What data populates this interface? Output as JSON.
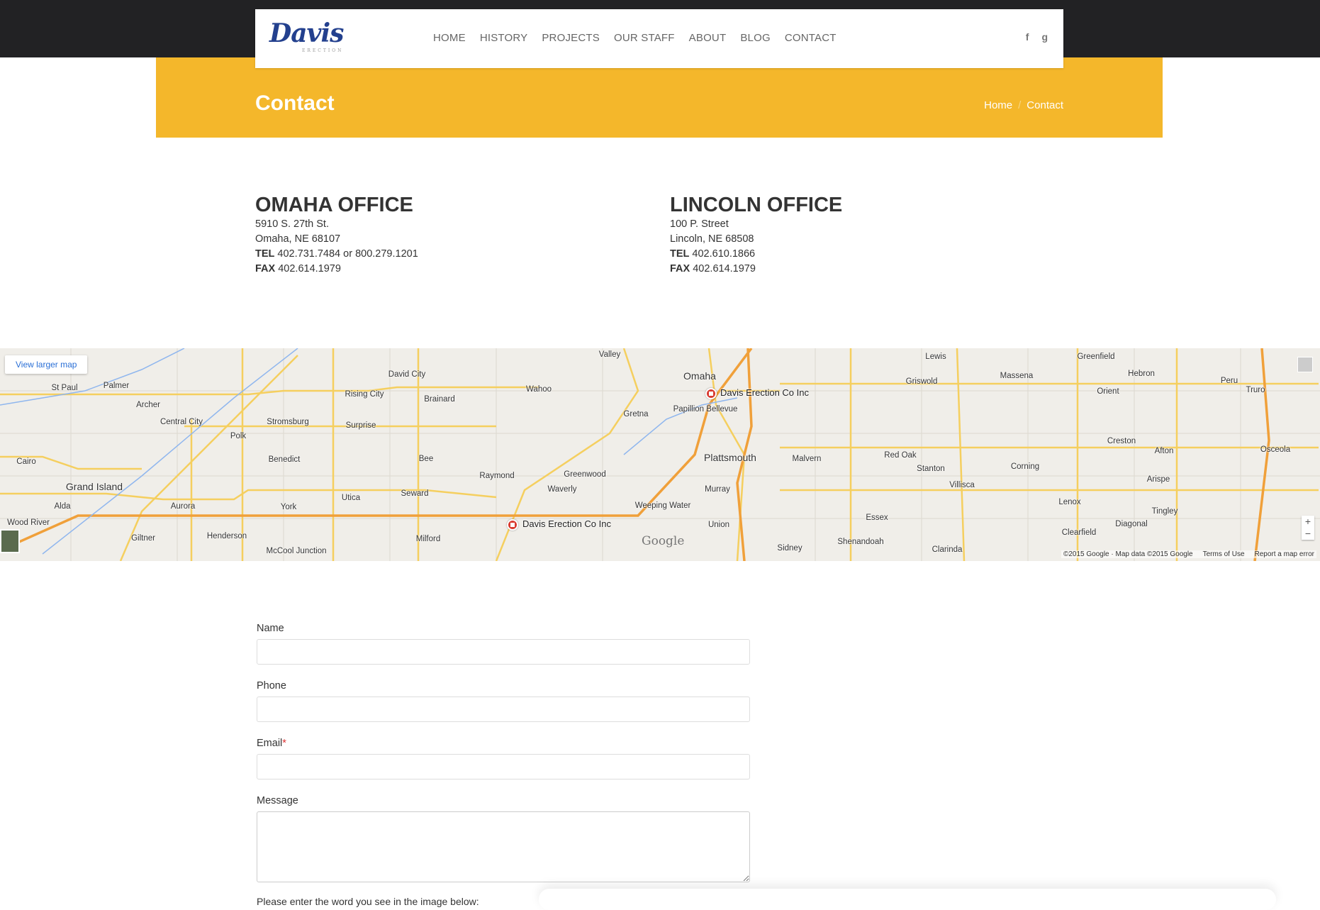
{
  "header": {
    "logo_text": "Davis",
    "logo_sub": "ERECTION",
    "nav": [
      "HOME",
      "HISTORY",
      "PROJECTS",
      "OUR STAFF",
      "ABOUT",
      "BLOG",
      "CONTACT"
    ],
    "social": {
      "facebook": "f",
      "google": "g"
    }
  },
  "banner": {
    "title": "Contact",
    "breadcrumb": [
      "Home",
      "Contact"
    ],
    "separator": "/",
    "color": "#f4b72b"
  },
  "offices": [
    {
      "title": "OMAHA OFFICE",
      "address1": "5910 S. 27th St.",
      "address2": "Omaha, NE 68107",
      "tel_label": "TEL",
      "tel": "402.731.7484 or 800.279.1201",
      "fax_label": "FAX",
      "fax": "402.614.1979"
    },
    {
      "title": "LINCOLN OFFICE",
      "address1": "100 P. Street",
      "address2": "Lincoln, NE 68508",
      "tel_label": "TEL",
      "tel": "402.610.1866",
      "fax_label": "FAX",
      "fax": "402.614.1979"
    }
  ],
  "map": {
    "view_larger": "View larger map",
    "markers": [
      "Davis Erection Co Inc",
      "Davis Erection Co Inc"
    ],
    "labels": [
      "St Paul",
      "Palmer",
      "Archer",
      "Central City",
      "Polk",
      "Stromsburg",
      "Rising City",
      "David City",
      "Surprise",
      "Brainard",
      "Wahoo",
      "Valley",
      "Omaha",
      "Gretna",
      "Papillion Bellevue",
      "Lewis",
      "Griswold",
      "Massena",
      "Greenfield",
      "Hebron",
      "Orient",
      "Peru",
      "Truro",
      "Cairo",
      "Benedict",
      "Bee",
      "Raymond",
      "Greenwood",
      "Plattsmouth",
      "Malvern",
      "Red Oak",
      "Stanton",
      "Villisca",
      "Corning",
      "Creston",
      "Afton",
      "Osceola",
      "Arispe",
      "Grand Island",
      "Alda",
      "Aurora",
      "York",
      "Utica",
      "Seward",
      "Waverly",
      "Murray",
      "Weeping Water",
      "Lenox",
      "Tingley",
      "Wood River",
      "Henderson",
      "Giltner",
      "McCool Junction",
      "Milford",
      "Union",
      "Essex",
      "Shenandoah",
      "Sidney",
      "Clarinda",
      "Clearfield",
      "Diagonal"
    ],
    "google_logo": "Google",
    "attribution": "©2015 Google · Map data ©2015 Google",
    "terms": "Terms of Use",
    "report": "Report a map error",
    "zoom_in": "+",
    "zoom_out": "−"
  },
  "form": {
    "name_label": "Name",
    "phone_label": "Phone",
    "email_label": "Email",
    "required_mark": "*",
    "message_label": "Message",
    "captcha_hint": "Please enter the word you see in the image below:"
  }
}
